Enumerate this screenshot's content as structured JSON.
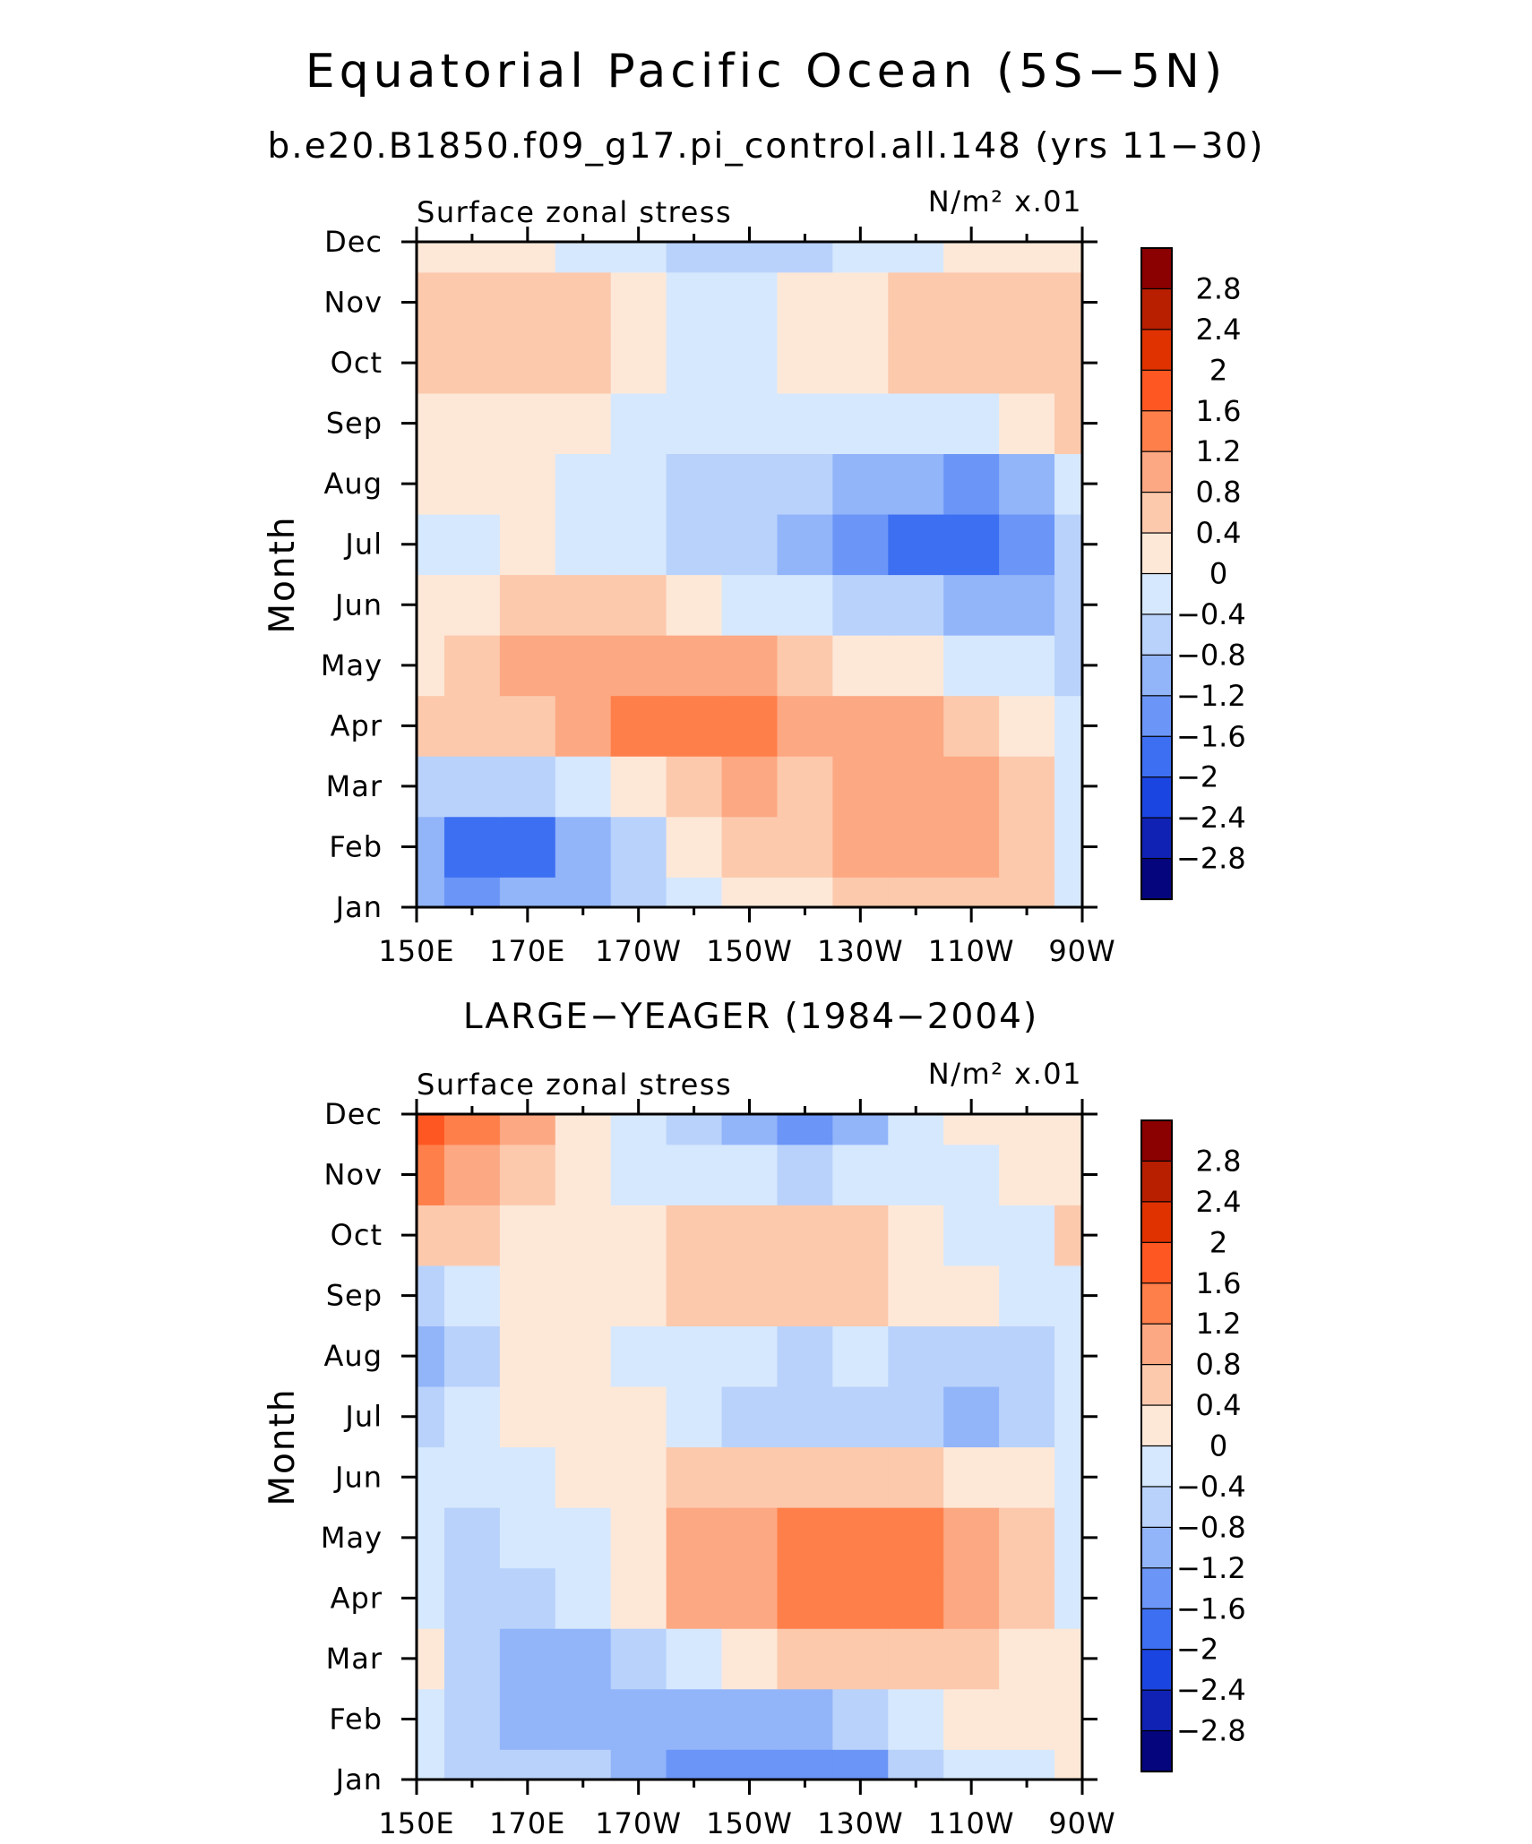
{
  "figure": {
    "title": "Equatorial Pacific Ocean (5S−5N)",
    "subtitle": "b.e20.B1850.f09_g17.pi_control.all.148 (yrs 11−30)"
  },
  "panels": [
    {
      "name": "model",
      "title": "",
      "left_label": "Surface zonal stress",
      "units_label": "N/m² x.01"
    },
    {
      "name": "observations",
      "title": "LARGE−YEAGER (1984−2004)",
      "left_label": "Surface zonal stress",
      "units_label": "N/m² x.01"
    }
  ],
  "chart_data": [
    {
      "type": "heatmap",
      "subtype": "filled-contour (Hovmoller)",
      "title": "Equatorial Pacific Ocean (5S−5N)",
      "subtitle": "b.e20.B1850.f09_g17.pi_control.all.148 (yrs 11−30)",
      "left_string": "Surface zonal stress",
      "right_string": "N/m² x.01",
      "xlabel": "",
      "ylabel": "Month",
      "x_tick_labels": [
        "150E",
        "170E",
        "170W",
        "150W",
        "130W",
        "110W",
        "90W"
      ],
      "y_tick_labels": [
        "Jan",
        "Feb",
        "Mar",
        "Apr",
        "May",
        "Jun",
        "Jul",
        "Aug",
        "Sep",
        "Oct",
        "Nov",
        "Dec"
      ],
      "x_lon_range": [
        150,
        270
      ],
      "x": [
        150,
        160,
        170,
        180,
        190,
        200,
        210,
        220,
        230,
        240,
        250,
        260,
        270
      ],
      "y": [
        1,
        2,
        3,
        4,
        5,
        6,
        7,
        8,
        9,
        10,
        11,
        12
      ],
      "z": [
        [
          -0.9,
          -1.4,
          -1.2,
          -1.2,
          -0.7,
          -0.3,
          0.1,
          0.3,
          0.5,
          0.6,
          0.6,
          0.5,
          -0.1
        ],
        [
          -1.2,
          -1.9,
          -1.7,
          -1.1,
          -0.5,
          0.1,
          0.4,
          0.7,
          0.9,
          1.0,
          1.1,
          0.7,
          -0.1
        ],
        [
          -0.5,
          -0.8,
          -0.8,
          -0.4,
          0.2,
          0.5,
          0.8,
          0.7,
          1.0,
          1.1,
          1.0,
          0.5,
          -0.1
        ],
        [
          0.4,
          0.5,
          0.7,
          1.0,
          1.3,
          1.5,
          1.5,
          1.1,
          0.9,
          0.9,
          0.7,
          0.3,
          -0.2
        ],
        [
          0.3,
          0.6,
          0.9,
          1.0,
          1.1,
          1.0,
          0.8,
          0.4,
          0.2,
          0.1,
          -0.1,
          -0.3,
          -0.5
        ],
        [
          0.2,
          0.3,
          0.4,
          0.5,
          0.4,
          0.2,
          -0.1,
          -0.3,
          -0.5,
          -0.8,
          -1.0,
          -1.1,
          -0.7
        ],
        [
          -0.1,
          -0.2,
          0.1,
          -0.2,
          -0.4,
          -0.6,
          -0.7,
          -0.9,
          -1.3,
          -1.8,
          -2.0,
          -1.6,
          -0.6
        ],
        [
          0.1,
          0.2,
          0.3,
          -0.1,
          -0.4,
          -0.6,
          -0.6,
          -0.7,
          -0.9,
          -1.2,
          -1.3,
          -1.0,
          -0.3
        ],
        [
          0.1,
          0.2,
          0.3,
          0.2,
          -0.1,
          -0.2,
          -0.2,
          -0.2,
          -0.3,
          -0.4,
          -0.2,
          0.2,
          0.4
        ],
        [
          0.5,
          0.6,
          0.6,
          0.4,
          0.1,
          -0.2,
          -0.2,
          0.0,
          0.3,
          0.5,
          0.6,
          0.7,
          0.5
        ],
        [
          0.6,
          0.5,
          0.5,
          0.5,
          0.1,
          -0.2,
          -0.3,
          0.2,
          0.3,
          0.5,
          0.6,
          0.6,
          0.4
        ],
        [
          0.3,
          0.2,
          0.0,
          -0.2,
          -0.4,
          -0.8,
          -0.8,
          -0.5,
          -0.3,
          -0.2,
          0.1,
          0.3,
          0.2
        ]
      ],
      "z_note": "approximate values read from contour shading",
      "colorbar": {
        "labels": [
          "2.8",
          "2.4",
          "2",
          "1.6",
          "1.2",
          "0.8",
          "0.4",
          "0",
          "−0.4",
          "−0.8",
          "−1.2",
          "−1.6",
          "−2",
          "−2.4",
          "−2.8"
        ],
        "levels": [
          2.8,
          2.4,
          2,
          1.6,
          1.2,
          0.8,
          0.4,
          0,
          -0.4,
          -0.8,
          -1.2,
          -1.6,
          -2,
          -2.4,
          -2.8
        ],
        "colors": [
          "#8b0000",
          "#b81e00",
          "#e03200",
          "#ff5722",
          "#ff7f4a",
          "#fca883",
          "#fcc9ad",
          "#fde8d8",
          "#d6e8fd",
          "#b9d2fb",
          "#92b4f9",
          "#6b95f7",
          "#3d6ff2",
          "#1b45e0",
          "#0f22b3",
          "#05057e"
        ]
      }
    },
    {
      "type": "heatmap",
      "subtype": "filled-contour (Hovmoller)",
      "title": "LARGE−YEAGER (1984−2004)",
      "left_string": "Surface zonal stress",
      "right_string": "N/m² x.01",
      "xlabel": "",
      "ylabel": "Month",
      "x_tick_labels": [
        "150E",
        "170E",
        "170W",
        "150W",
        "130W",
        "110W",
        "90W"
      ],
      "y_tick_labels": [
        "Jan",
        "Feb",
        "Mar",
        "Apr",
        "May",
        "Jun",
        "Jul",
        "Aug",
        "Sep",
        "Oct",
        "Nov",
        "Dec"
      ],
      "x_lon_range": [
        150,
        270
      ],
      "x": [
        150,
        160,
        170,
        180,
        190,
        200,
        210,
        220,
        230,
        240,
        250,
        260,
        270
      ],
      "y": [
        1,
        2,
        3,
        4,
        5,
        6,
        7,
        8,
        9,
        10,
        11,
        12
      ],
      "z": [
        [
          -0.2,
          -0.6,
          -0.8,
          -0.6,
          -1.1,
          -1.5,
          -1.3,
          -1.5,
          -1.3,
          -0.8,
          -0.4,
          -0.1,
          0.1
        ],
        [
          -0.3,
          -0.8,
          -1.1,
          -0.9,
          -1.2,
          -1.1,
          -0.9,
          -1.0,
          -0.6,
          -0.3,
          0.0,
          0.2,
          0.1
        ],
        [
          0.1,
          -0.6,
          -1.0,
          -1.0,
          -0.6,
          -0.3,
          0.0,
          0.4,
          0.6,
          0.7,
          0.5,
          0.3,
          0.0
        ],
        [
          -0.1,
          -0.5,
          -0.6,
          -0.4,
          0.3,
          0.9,
          1.1,
          1.3,
          1.5,
          1.5,
          1.1,
          0.6,
          -0.1
        ],
        [
          -0.2,
          -0.6,
          -0.4,
          -0.1,
          0.3,
          0.9,
          0.9,
          1.2,
          1.2,
          1.3,
          1.0,
          0.5,
          -0.1
        ],
        [
          -0.3,
          -0.4,
          -0.2,
          0.1,
          0.3,
          0.6,
          0.6,
          0.5,
          0.6,
          0.5,
          0.3,
          0.0,
          -0.2
        ],
        [
          -0.5,
          -0.4,
          0.1,
          0.2,
          0.1,
          -0.2,
          -0.5,
          -0.6,
          -0.5,
          -0.7,
          -0.9,
          -0.5,
          -0.1
        ],
        [
          -1.2,
          -0.5,
          0.1,
          0.1,
          -0.1,
          -0.2,
          -0.2,
          -0.6,
          -0.3,
          -0.6,
          -0.8,
          -0.5,
          -0.1
        ],
        [
          -0.6,
          -0.3,
          0.1,
          0.1,
          0.1,
          0.4,
          0.5,
          0.6,
          0.7,
          0.3,
          0.0,
          -0.3,
          -0.1
        ],
        [
          0.5,
          0.4,
          0.2,
          0.1,
          0.3,
          0.5,
          0.6,
          0.5,
          0.4,
          0.2,
          -0.1,
          -0.2,
          0.4
        ],
        [
          1.2,
          1.0,
          0.6,
          0.2,
          -0.1,
          -0.3,
          -0.4,
          -0.6,
          -0.4,
          -0.3,
          -0.1,
          0.1,
          0.2
        ],
        [
          1.6,
          1.4,
          0.8,
          0.2,
          -0.2,
          -0.8,
          -0.9,
          -1.3,
          -1.0,
          -0.4,
          0.0,
          0.2,
          0.1
        ]
      ],
      "z_note": "approximate values read from contour shading",
      "colorbar": {
        "labels": [
          "2.8",
          "2.4",
          "2",
          "1.6",
          "1.2",
          "0.8",
          "0.4",
          "0",
          "−0.4",
          "−0.8",
          "−1.2",
          "−1.6",
          "−2",
          "−2.4",
          "−2.8"
        ],
        "levels": [
          2.8,
          2.4,
          2,
          1.6,
          1.2,
          0.8,
          0.4,
          0,
          -0.4,
          -0.8,
          -1.2,
          -1.6,
          -2,
          -2.4,
          -2.8
        ],
        "colors": [
          "#8b0000",
          "#b81e00",
          "#e03200",
          "#ff5722",
          "#ff7f4a",
          "#fca883",
          "#fcc9ad",
          "#fde8d8",
          "#d6e8fd",
          "#b9d2fb",
          "#92b4f9",
          "#6b95f7",
          "#3d6ff2",
          "#1b45e0",
          "#0f22b3",
          "#05057e"
        ]
      }
    }
  ]
}
